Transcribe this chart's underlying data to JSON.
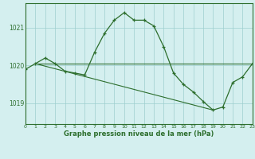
{
  "hours": [
    0,
    1,
    2,
    3,
    4,
    5,
    6,
    7,
    8,
    9,
    10,
    11,
    12,
    13,
    14,
    15,
    16,
    17,
    18,
    19,
    20,
    21,
    22,
    23
  ],
  "pressure": [
    1019.9,
    1020.05,
    1020.2,
    1020.05,
    1019.85,
    1019.8,
    1019.75,
    1020.35,
    1020.85,
    1021.2,
    1021.4,
    1021.2,
    1021.2,
    1021.05,
    1020.5,
    1019.8,
    1019.5,
    1019.3,
    1019.05,
    1018.82,
    1018.9,
    1019.55,
    1019.7,
    1020.05
  ],
  "line_color": "#2d6e2d",
  "bg_color": "#d4efef",
  "grid_color": "#9ecece",
  "axis_color": "#2d6e2d",
  "border_color": "#2d6e2d",
  "ylabel_ticks": [
    1019,
    1020,
    1021
  ],
  "xlabel": "Graphe pression niveau de la mer (hPa)",
  "ylim": [
    1018.45,
    1021.65
  ],
  "xlim": [
    0,
    23
  ],
  "flat_line": {
    "x0": 1,
    "x1": 23,
    "y0": 1020.05,
    "y1": 1020.05
  },
  "diag_line": {
    "x0": 1,
    "x1": 19,
    "y0": 1020.05,
    "y1": 1018.82
  }
}
